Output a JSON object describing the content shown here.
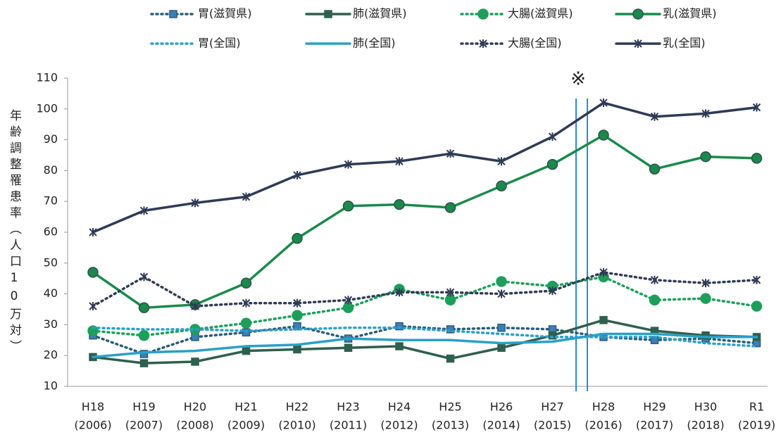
{
  "chart_data": {
    "type": "line",
    "y_label": "年齢調整罹患率（人口10万対）",
    "annotation": "※",
    "categories": [
      [
        "H18",
        "(2006)"
      ],
      [
        "H19",
        "(2007)"
      ],
      [
        "H20",
        "(2008)"
      ],
      [
        "H21",
        "(2009)"
      ],
      [
        "H22",
        "(2010)"
      ],
      [
        "H23",
        "(2011)"
      ],
      [
        "H24",
        "(2012)"
      ],
      [
        "H25",
        "(2013)"
      ],
      [
        "H26",
        "(2014)"
      ],
      [
        "H27",
        "(2015)"
      ],
      [
        "H28",
        "(2016)"
      ],
      [
        "H29",
        "(2017)"
      ],
      [
        "H30",
        "(2018)"
      ],
      [
        "R1",
        "(2019)"
      ]
    ],
    "ylim": [
      10,
      110
    ],
    "yticks": [
      10,
      20,
      30,
      40,
      50,
      60,
      70,
      80,
      90,
      100,
      110
    ],
    "series": [
      {
        "name": "胃(滋賀県)",
        "color": "#2b5d78",
        "marker": "square",
        "dashed": true,
        "values": [
          26.5,
          20.5,
          26,
          27.5,
          29.5,
          25.5,
          29.5,
          28.5,
          29,
          28.5,
          26,
          25,
          25.5,
          24
        ]
      },
      {
        "name": "肺(滋賀県)",
        "color": "#2f5f4f",
        "marker": "square",
        "dashed": false,
        "values": [
          19.5,
          17.5,
          18,
          21.5,
          22,
          22.5,
          23,
          19,
          22.5,
          26.5,
          31.5,
          28,
          26.5,
          26
        ]
      },
      {
        "name": "大腸(滋賀県)",
        "color": "#1e9e5a",
        "marker": "circle",
        "dashed": true,
        "values": [
          28,
          26.5,
          28.5,
          30.5,
          33,
          35.5,
          41.5,
          38,
          44,
          42.5,
          45.5,
          38,
          38.5,
          36
        ]
      },
      {
        "name": "乳(滋賀県)",
        "color": "#1a8a4a",
        "marker": "circle",
        "dashed": false,
        "values": [
          47,
          35.5,
          36.5,
          43.5,
          58,
          68.5,
          69,
          68,
          75,
          82,
          91.5,
          80.5,
          84.5,
          84
        ]
      },
      {
        "name": "胃(全国)",
        "color": "#2aa0c8",
        "marker": "none",
        "dashed": true,
        "values": [
          29,
          28.5,
          28.5,
          28,
          28.5,
          29,
          29,
          28,
          27,
          26,
          26,
          26,
          24,
          23
        ]
      },
      {
        "name": "肺(全国)",
        "color": "#2aa0c8",
        "marker": "none",
        "dashed": false,
        "values": [
          19.5,
          21,
          21.5,
          23,
          23.5,
          25.5,
          25,
          25,
          24,
          24.5,
          27,
          27,
          26,
          26
        ]
      },
      {
        "name": "大腸(全国)",
        "color": "#2f3b55",
        "marker": "star",
        "dashed": true,
        "values": [
          36,
          45.5,
          36,
          37,
          37,
          38,
          40.5,
          40.5,
          40,
          41,
          47,
          44.5,
          43.5,
          44.5
        ]
      },
      {
        "name": "乳(全国)",
        "color": "#2f3b55",
        "marker": "star",
        "dashed": false,
        "values": [
          60,
          67,
          69.5,
          71.5,
          78.5,
          82,
          83,
          85.5,
          83,
          91,
          102,
          97.5,
          98.5,
          100.5
        ]
      }
    ]
  }
}
